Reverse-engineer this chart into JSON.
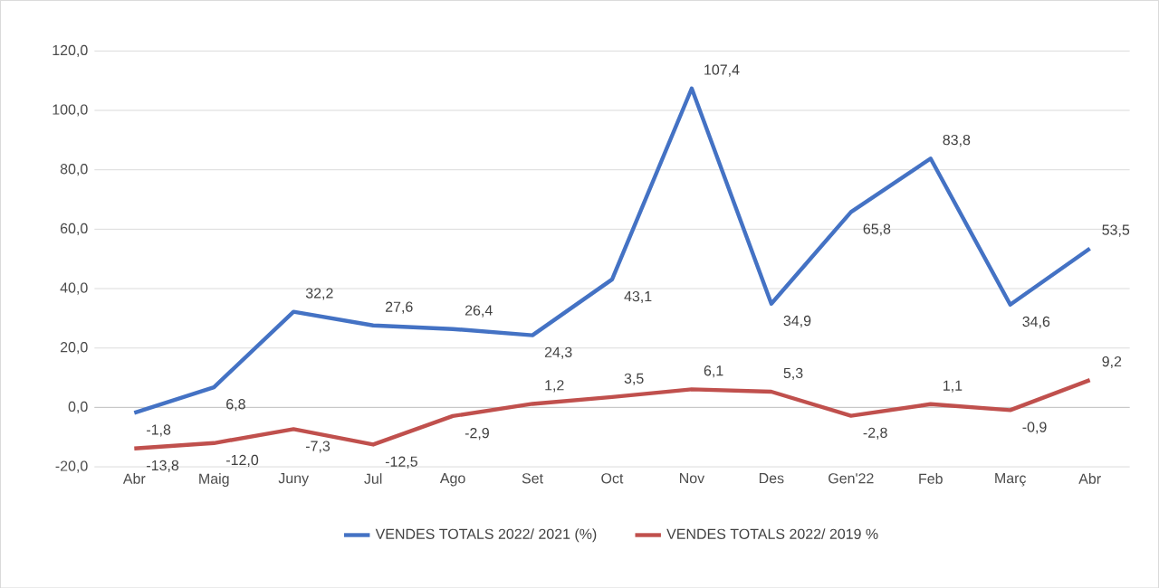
{
  "chart_data": {
    "type": "line",
    "categories": [
      "Abr",
      "Maig",
      "Juny",
      "Jul",
      "Ago",
      "Set",
      "Oct",
      "Nov",
      "Des",
      "Gen'22",
      "Feb",
      "Març",
      "Abr"
    ],
    "series": [
      {
        "name": "VENDES TOTALS 2022/ 2021 (%)",
        "color": "#4472c4",
        "values": [
          -1.8,
          6.8,
          32.2,
          27.6,
          26.4,
          24.3,
          43.1,
          107.4,
          34.9,
          65.8,
          83.8,
          34.6,
          53.5
        ],
        "value_labels": [
          "-1,8",
          "6,8",
          "32,2",
          "27,6",
          "26,4",
          "24,3",
          "43,1",
          "107,4",
          "34,9",
          "65,8",
          "83,8",
          "34,6",
          "53,5"
        ]
      },
      {
        "name": "VENDES TOTALS 2022/ 2019 %",
        "color": "#c0504d",
        "values": [
          -13.8,
          -12.0,
          -7.3,
          -12.5,
          -2.9,
          1.2,
          3.5,
          6.1,
          5.3,
          -2.8,
          1.1,
          -0.9,
          9.2
        ],
        "value_labels": [
          "-13,8",
          "-12,0",
          "-7,3",
          "-12,5",
          "-2,9",
          "1,2",
          "3,5",
          "6,1",
          "5,3",
          "-2,8",
          "1,1",
          "-0,9",
          "9,2"
        ]
      }
    ],
    "ylim": [
      -20,
      120
    ],
    "yticks": [
      {
        "value": -20,
        "label": "-20,0"
      },
      {
        "value": 0,
        "label": "0,0"
      },
      {
        "value": 20,
        "label": "20,0"
      },
      {
        "value": 40,
        "label": "40,0"
      },
      {
        "value": 60,
        "label": "60,0"
      },
      {
        "value": 80,
        "label": "80,0"
      },
      {
        "value": 100,
        "label": "100,0"
      },
      {
        "value": 120,
        "label": "120,0"
      }
    ],
    "grid": "y",
    "legend": "bottom",
    "marker": "none",
    "line_style": "solid"
  }
}
